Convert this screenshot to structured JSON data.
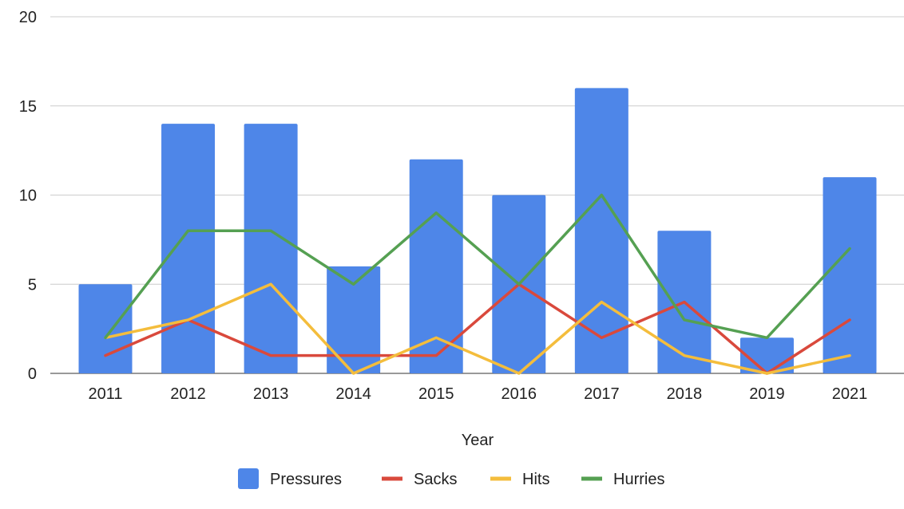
{
  "chart_data": {
    "type": "bar",
    "categories": [
      "2011",
      "2012",
      "2013",
      "2014",
      "2015",
      "2016",
      "2017",
      "2018",
      "2019",
      "2021"
    ],
    "xlabel": "Year",
    "ylabel": "",
    "ylim": [
      0,
      20
    ],
    "yticks": [
      "0",
      "5",
      "10",
      "15",
      "20"
    ],
    "grid": true,
    "legend_position": "bottom",
    "series": [
      {
        "name": "Pressures",
        "kind": "bar",
        "color": "#4e86e8",
        "values": [
          5,
          14,
          14,
          6,
          12,
          10,
          16,
          8,
          2,
          11
        ]
      },
      {
        "name": "Sacks",
        "kind": "line",
        "color": "#d9493c",
        "values": [
          1,
          3,
          1,
          1,
          1,
          5,
          2,
          4,
          0,
          3
        ]
      },
      {
        "name": "Hits",
        "kind": "line",
        "color": "#f4bd3c",
        "values": [
          2,
          3,
          5,
          0,
          2,
          0,
          4,
          1,
          0,
          1
        ]
      },
      {
        "name": "Hurries",
        "kind": "line",
        "color": "#55a052",
        "values": [
          2,
          8,
          8,
          5,
          9,
          5,
          10,
          3,
          2,
          7
        ]
      }
    ]
  }
}
